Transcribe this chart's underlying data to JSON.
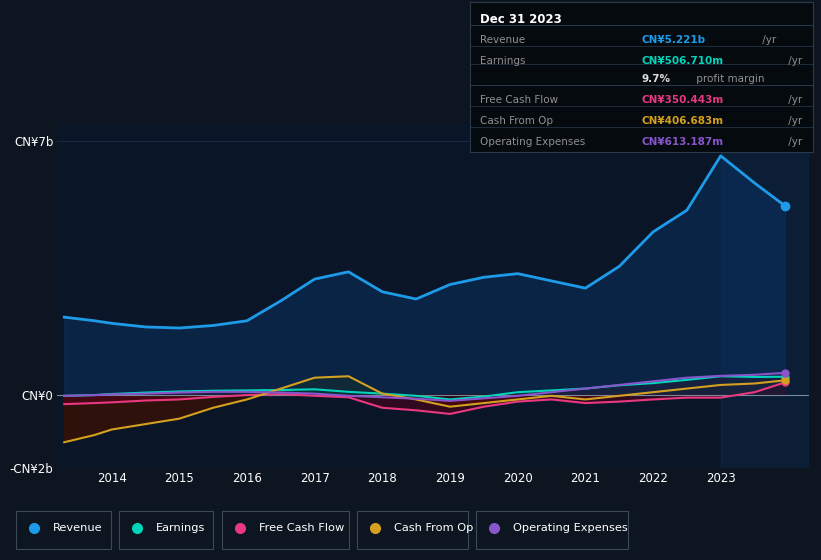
{
  "bg_color": "#0d1520",
  "plot_bg_color": "#0a1628",
  "grid_color": "#1a3050",
  "years": [
    2013.3,
    2013.75,
    2014.0,
    2014.5,
    2015.0,
    2015.5,
    2016.0,
    2016.5,
    2017.0,
    2017.5,
    2018.0,
    2018.5,
    2019.0,
    2019.5,
    2020.0,
    2020.5,
    2021.0,
    2021.5,
    2022.0,
    2022.5,
    2023.0,
    2023.5,
    2023.95
  ],
  "revenue": [
    2.15,
    2.05,
    1.98,
    1.88,
    1.85,
    1.92,
    2.05,
    2.6,
    3.2,
    3.4,
    2.85,
    2.65,
    3.05,
    3.25,
    3.35,
    3.15,
    2.95,
    3.55,
    4.5,
    5.1,
    6.6,
    5.85,
    5.22
  ],
  "earnings": [
    -0.02,
    0.0,
    0.03,
    0.07,
    0.1,
    0.12,
    0.13,
    0.14,
    0.16,
    0.09,
    0.04,
    -0.02,
    -0.12,
    -0.04,
    0.08,
    0.13,
    0.18,
    0.27,
    0.33,
    0.42,
    0.52,
    0.5,
    0.507
  ],
  "free_cash_flow": [
    -0.25,
    -0.22,
    -0.2,
    -0.15,
    -0.12,
    -0.05,
    0.0,
    0.03,
    -0.02,
    -0.06,
    -0.35,
    -0.42,
    -0.52,
    -0.32,
    -0.18,
    -0.12,
    -0.22,
    -0.18,
    -0.12,
    -0.07,
    -0.07,
    0.08,
    0.35
  ],
  "cash_from_op": [
    -1.3,
    -1.1,
    -0.95,
    -0.8,
    -0.65,
    -0.35,
    -0.12,
    0.18,
    0.48,
    0.52,
    0.04,
    -0.12,
    -0.32,
    -0.22,
    -0.12,
    -0.02,
    -0.12,
    -0.02,
    0.08,
    0.18,
    0.28,
    0.32,
    0.407
  ],
  "operating_expenses": [
    -0.02,
    0.0,
    0.02,
    0.04,
    0.07,
    0.09,
    0.09,
    0.07,
    0.04,
    -0.02,
    -0.06,
    -0.1,
    -0.16,
    -0.09,
    -0.02,
    0.08,
    0.18,
    0.28,
    0.38,
    0.48,
    0.53,
    0.56,
    0.613
  ],
  "revenue_color": "#1e9be8",
  "earnings_color": "#00d4bb",
  "free_cash_flow_color": "#e83880",
  "cash_from_op_color": "#d4a020",
  "operating_expenses_color": "#8855cc",
  "ylim_min": -2.0,
  "ylim_max": 7.5,
  "xlim_min": 2013.2,
  "xlim_max": 2024.3,
  "ytick_positions": [
    -2,
    0,
    7
  ],
  "ytick_labels": [
    "-CN¥2b",
    "CN¥0",
    "CN¥7b"
  ],
  "xtick_positions": [
    2014,
    2015,
    2016,
    2017,
    2018,
    2019,
    2020,
    2021,
    2022,
    2023
  ],
  "info_box": {
    "title": "Dec 31 2023",
    "rows": [
      {
        "label": "Revenue",
        "value": "CN¥5.221b",
        "unit": " /yr",
        "color": "#1e9be8"
      },
      {
        "label": "Earnings",
        "value": "CN¥506.710m",
        "unit": " /yr",
        "color": "#00d4bb"
      },
      {
        "label": "",
        "value": "9.7%",
        "unit": " profit margin",
        "color": "#dddddd"
      },
      {
        "label": "Free Cash Flow",
        "value": "CN¥350.443m",
        "unit": " /yr",
        "color": "#e83880"
      },
      {
        "label": "Cash From Op",
        "value": "CN¥406.683m",
        "unit": " /yr",
        "color": "#d4a020"
      },
      {
        "label": "Operating Expenses",
        "value": "CN¥613.187m",
        "unit": " /yr",
        "color": "#8855cc"
      }
    ]
  },
  "legend_items": [
    {
      "label": "Revenue",
      "color": "#1e9be8"
    },
    {
      "label": "Earnings",
      "color": "#00d4bb"
    },
    {
      "label": "Free Cash Flow",
      "color": "#e83880"
    },
    {
      "label": "Cash From Op",
      "color": "#d4a020"
    },
    {
      "label": "Operating Expenses",
      "color": "#8855cc"
    }
  ]
}
